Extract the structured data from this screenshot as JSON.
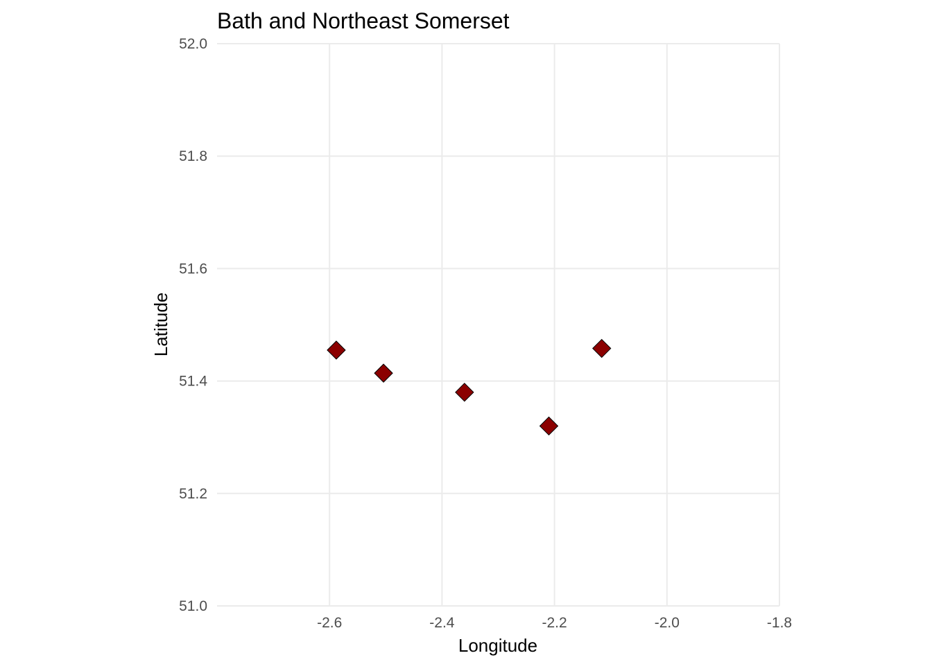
{
  "chart_data": {
    "type": "scatter",
    "title": "Bath and Northeast Somerset",
    "xlabel": "Longitude",
    "ylabel": "Latitude",
    "xlim": [
      -2.8,
      -1.8
    ],
    "ylim": [
      51.0,
      52.0
    ],
    "x_ticks": [
      -2.6,
      -2.4,
      -2.2,
      -2.0,
      -1.8
    ],
    "x_tick_labels": [
      "-2.6",
      "-2.4",
      "-2.2",
      "-2.0",
      "-1.8"
    ],
    "y_ticks": [
      51.0,
      51.2,
      51.4,
      51.6,
      51.8,
      52.0
    ],
    "y_tick_labels": [
      "51.0",
      "51.2",
      "51.4",
      "51.6",
      "51.8",
      "52.0"
    ],
    "grid": true,
    "marker": "diamond",
    "marker_color": "#8b0000",
    "marker_edge_color": "#000000",
    "grid_color": "#ebebeb",
    "series": [
      {
        "points": [
          {
            "x": -2.588,
            "y": 51.455
          },
          {
            "x": -2.504,
            "y": 51.414
          },
          {
            "x": -2.36,
            "y": 51.38
          },
          {
            "x": -2.21,
            "y": 51.32
          },
          {
            "x": -2.116,
            "y": 51.458
          }
        ]
      }
    ]
  }
}
